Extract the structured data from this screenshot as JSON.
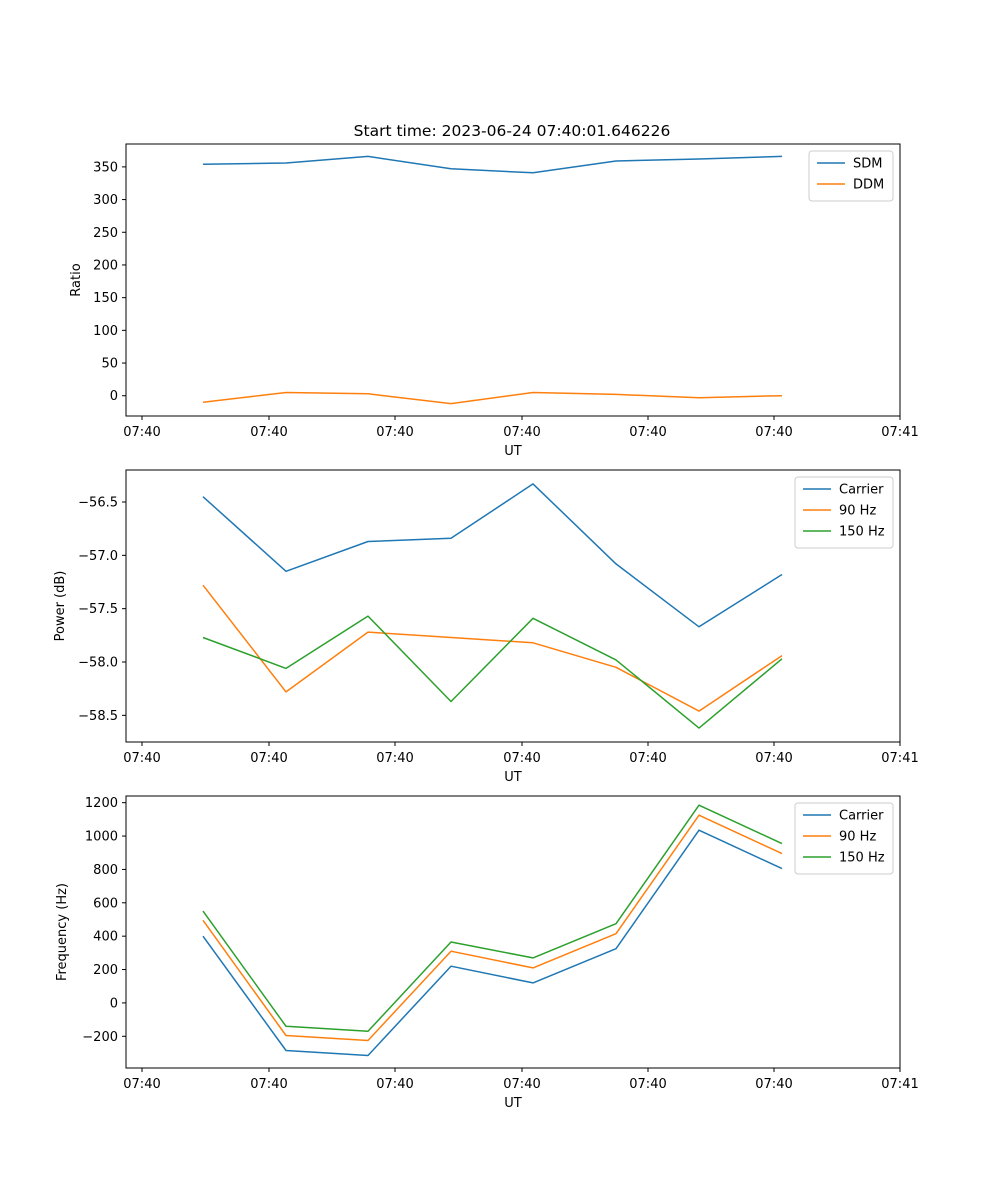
{
  "figure": {
    "title": "Start time: 2023-06-24 07:40:01.646226"
  },
  "chart_data": [
    {
      "type": "line",
      "title": "Start time: 2023-06-24 07:40:01.646226",
      "xlabel": "UT",
      "ylabel": "Ratio",
      "x_tick_labels": [
        "07:40",
        "07:40",
        "07:40",
        "07:40",
        "07:40",
        "07:40",
        "07:40"
      ],
      "x_tick_labels_right": "07:41",
      "y_ticks": [
        0,
        50,
        100,
        150,
        200,
        250,
        300,
        350
      ],
      "ylim": [
        -31,
        385
      ],
      "legend_position": "top-right",
      "grid": false,
      "series": [
        {
          "name": "SDM",
          "color": "#1f77b4",
          "values": [
            354,
            356,
            366,
            347,
            341,
            359,
            362,
            366
          ]
        },
        {
          "name": "DDM",
          "color": "#ff7f0e",
          "values": [
            -10,
            5,
            3,
            -12,
            5,
            2,
            -3,
            0
          ]
        }
      ]
    },
    {
      "type": "line",
      "xlabel": "UT",
      "ylabel": "Power (dB)",
      "x_tick_labels": [
        "07:40",
        "07:40",
        "07:40",
        "07:40",
        "07:40",
        "07:40",
        "07:40"
      ],
      "x_tick_labels_right": "07:41",
      "y_ticks": [
        -58.5,
        -58.0,
        -57.5,
        -57.0,
        -56.5
      ],
      "y_tick_labels": [
        "−58.5",
        "−58.0",
        "−57.5",
        "−57.0",
        "−56.5"
      ],
      "ylim": [
        -58.75,
        -56.2
      ],
      "legend_position": "top-right",
      "grid": false,
      "series": [
        {
          "name": "Carrier",
          "color": "#1f77b4",
          "values": [
            -56.45,
            -57.15,
            -56.87,
            -56.84,
            -56.33,
            -57.08,
            -57.67,
            -57.18
          ]
        },
        {
          "name": "90 Hz",
          "color": "#ff7f0e",
          "values": [
            -57.28,
            -58.28,
            -57.72,
            -57.77,
            -57.82,
            -58.05,
            -58.46,
            -57.94
          ]
        },
        {
          "name": "150 Hz",
          "color": "#2ca02c",
          "values": [
            -57.77,
            -58.06,
            -57.57,
            -58.37,
            -57.59,
            -57.98,
            -58.62,
            -57.97
          ]
        }
      ]
    },
    {
      "type": "line",
      "xlabel": "UT",
      "ylabel": "Frequency (Hz)",
      "x_tick_labels": [
        "07:40",
        "07:40",
        "07:40",
        "07:40",
        "07:40",
        "07:40",
        "07:40"
      ],
      "x_tick_labels_right": "07:41",
      "y_ticks": [
        -200,
        0,
        200,
        400,
        600,
        800,
        1000,
        1200
      ],
      "y_tick_labels": [
        "−200",
        "0",
        "200",
        "400",
        "600",
        "800",
        "1000",
        "1200"
      ],
      "ylim": [
        -390,
        1240
      ],
      "legend_position": "top-right",
      "grid": false,
      "series": [
        {
          "name": "Carrier",
          "color": "#1f77b4",
          "values": [
            400,
            -285,
            -315,
            220,
            120,
            325,
            1035,
            805
          ]
        },
        {
          "name": "90 Hz",
          "color": "#ff7f0e",
          "values": [
            495,
            -195,
            -225,
            310,
            210,
            415,
            1125,
            895
          ]
        },
        {
          "name": "150 Hz",
          "color": "#2ca02c",
          "values": [
            550,
            -140,
            -170,
            365,
            270,
            475,
            1185,
            955
          ]
        }
      ]
    }
  ]
}
